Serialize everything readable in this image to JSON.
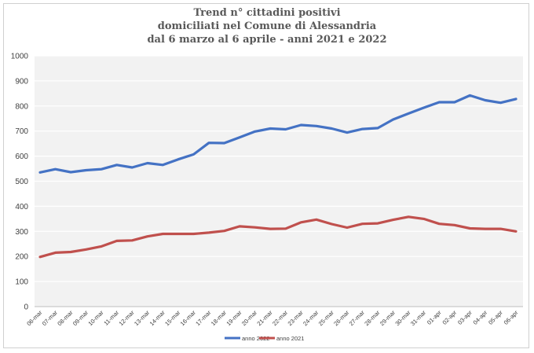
{
  "chart_data": {
    "type": "line",
    "title": [
      "Trend n° cittadini positivi",
      "domiciliati nel Comune di Alessandria",
      "dal 6 marzo al 6 aprile - anni 2021 e 2022"
    ],
    "xlabel": "",
    "ylabel": "",
    "ylim": [
      0,
      1000
    ],
    "yticks": [
      0,
      100,
      200,
      300,
      400,
      500,
      600,
      700,
      800,
      900,
      1000
    ],
    "grid": true,
    "legend_position": "bottom",
    "categories": [
      "06-mar",
      "07-mar",
      "08-mar",
      "09-mar",
      "10-mar",
      "11-mar",
      "12-mar",
      "13-mar",
      "14-mar",
      "15-mar",
      "16-mar",
      "17-mar",
      "18-mar",
      "19-mar",
      "20-mar",
      "21-mar",
      "22-mar",
      "23-mar",
      "24-mar",
      "25-mar",
      "26-mar",
      "27-mar",
      "28-mar",
      "29-mar",
      "30-mar",
      "31-mar",
      "01-apr",
      "02-apr",
      "03-apr",
      "04-apr",
      "05-apr",
      "06-apr"
    ],
    "series": [
      {
        "name": "anno 2022",
        "color": "#4472c4",
        "values": [
          535,
          548,
          536,
          544,
          548,
          565,
          555,
          572,
          565,
          587,
          607,
          653,
          652,
          675,
          698,
          710,
          707,
          724,
          720,
          710,
          694,
          708,
          712,
          746,
          770,
          793,
          815,
          815,
          842,
          823,
          813,
          828
        ]
      },
      {
        "name": "anno 2021",
        "color": "#c0504d",
        "values": [
          198,
          215,
          218,
          228,
          240,
          262,
          264,
          280,
          290,
          290,
          290,
          295,
          302,
          320,
          316,
          310,
          311,
          336,
          347,
          329,
          315,
          330,
          332,
          346,
          358,
          350,
          330,
          325,
          312,
          310,
          310,
          300
        ]
      }
    ]
  }
}
